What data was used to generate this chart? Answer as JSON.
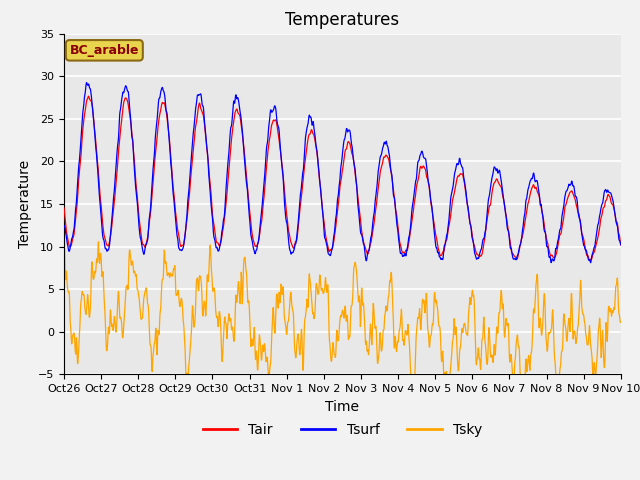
{
  "title": "Temperatures",
  "xlabel": "Time",
  "ylabel": "Temperature",
  "ylim": [
    -5,
    35
  ],
  "site_label": "BC_arable",
  "site_label_color": "#8B0000",
  "site_label_bg": "#e8d44d",
  "legend_labels": [
    "Tair",
    "Tsurf",
    "Tsky"
  ],
  "line_colors": [
    "red",
    "blue",
    "orange"
  ],
  "xtick_labels": [
    "Oct 26",
    "Oct 27",
    "Oct 28",
    "Oct 29",
    "Oct 30",
    "Oct 31",
    "Nov 1",
    "Nov 2",
    "Nov 3",
    "Nov 4",
    "Nov 5",
    "Nov 6",
    "Nov 7",
    "Nov 8",
    "Nov 9",
    "Nov 10"
  ],
  "ytick_vals": [
    -5,
    0,
    5,
    10,
    15,
    20,
    25,
    30,
    35
  ],
  "title_fontsize": 12,
  "axis_fontsize": 10,
  "tick_fontsize": 8,
  "fig_bg": "#f2f2f2",
  "plot_bg": "#e8e8e8"
}
